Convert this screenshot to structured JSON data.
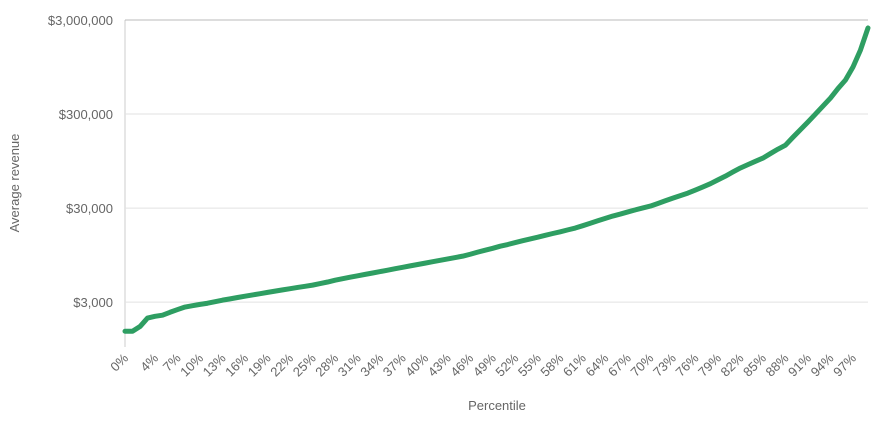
{
  "chart_data": {
    "type": "line",
    "y_label": "Average revenue",
    "x_label": "Percentile",
    "categories": [
      "0%",
      null,
      null,
      null,
      "4%",
      null,
      null,
      "7%",
      null,
      null,
      "10%",
      null,
      null,
      "13%",
      null,
      null,
      "16%",
      null,
      null,
      "19%",
      null,
      null,
      "22%",
      null,
      null,
      "25%",
      null,
      null,
      "28%",
      null,
      null,
      "31%",
      null,
      null,
      "34%",
      null,
      null,
      "37%",
      null,
      null,
      "40%",
      null,
      null,
      "43%",
      null,
      null,
      "46%",
      null,
      null,
      "49%",
      null,
      null,
      "52%",
      null,
      null,
      "55%",
      null,
      null,
      "58%",
      null,
      null,
      "61%",
      null,
      null,
      "64%",
      null,
      null,
      "67%",
      null,
      null,
      "70%",
      null,
      null,
      "73%",
      null,
      null,
      "76%",
      null,
      null,
      "79%",
      null,
      null,
      "82%",
      null,
      null,
      "85%",
      null,
      null,
      "88%",
      null,
      null,
      "91%",
      null,
      null,
      "94%",
      null,
      null,
      "97%",
      null,
      null
    ],
    "values": [
      1470,
      1470,
      1650,
      2030,
      2120,
      2180,
      2340,
      2500,
      2660,
      2750,
      2840,
      2920,
      3030,
      3150,
      3250,
      3360,
      3470,
      3580,
      3690,
      3810,
      3930,
      4050,
      4170,
      4300,
      4420,
      4550,
      4730,
      4910,
      5130,
      5330,
      5530,
      5720,
      5920,
      6120,
      6340,
      6560,
      6800,
      7040,
      7290,
      7540,
      7800,
      8070,
      8350,
      8640,
      8940,
      9250,
      9690,
      10200,
      10700,
      11200,
      11800,
      12300,
      12900,
      13500,
      14100,
      14700,
      15400,
      16100,
      16800,
      17600,
      18400,
      19500,
      20700,
      22000,
      23300,
      24700,
      25900,
      27300,
      28700,
      30100,
      31500,
      33600,
      35900,
      38300,
      40700,
      43300,
      46700,
      50400,
      54500,
      59900,
      65600,
      72600,
      80100,
      87000,
      94200,
      102000,
      114000,
      127000,
      140000,
      170000,
      205000,
      247000,
      300000,
      365000,
      444000,
      560000,
      690000,
      950000,
      1440000,
      2470000
    ],
    "color": "#2e9e62",
    "log_y": true,
    "grid": true,
    "ylim": [
      1000,
      3000000
    ],
    "yticks": [
      {
        "value": 3000,
        "label": "$3,000"
      },
      {
        "value": 30000,
        "label": "$30,000"
      },
      {
        "value": 300000,
        "label": "$300,000"
      },
      {
        "value": 3000000,
        "label": "$3,000,000"
      }
    ]
  }
}
